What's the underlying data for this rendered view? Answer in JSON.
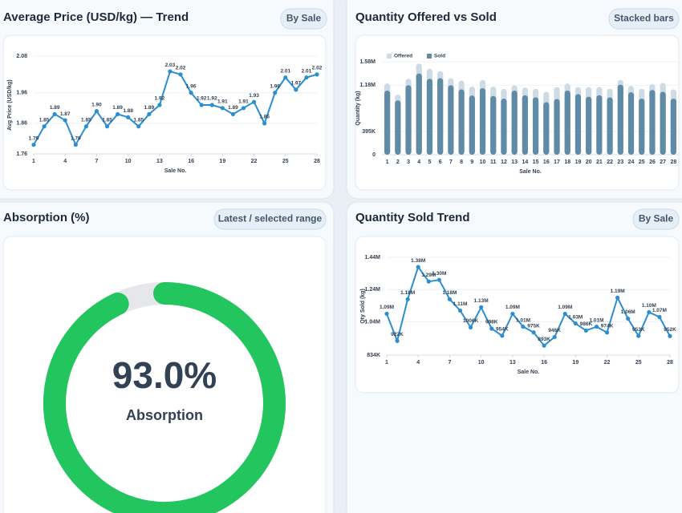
{
  "chart_data": [
    {
      "type": "line",
      "title": "Average Price (USD/kg) — Trend",
      "badge": "By Sale",
      "xlabel": "Sale No.",
      "ylabel": "Avg Price (USD/kg)",
      "x": [
        1,
        2,
        3,
        4,
        5,
        6,
        7,
        8,
        9,
        10,
        11,
        12,
        13,
        14,
        15,
        16,
        17,
        18,
        19,
        20,
        21,
        22,
        23,
        24,
        25,
        26,
        27,
        28
      ],
      "values": [
        1.79,
        1.85,
        1.89,
        1.87,
        1.79,
        1.85,
        1.9,
        1.85,
        1.89,
        1.88,
        1.85,
        1.89,
        1.92,
        2.03,
        2.02,
        1.96,
        1.92,
        1.92,
        1.91,
        1.89,
        1.91,
        1.93,
        1.86,
        1.96,
        2.01,
        1.97,
        2.01,
        2.02
      ],
      "value_labels": [
        "1.79",
        "1.85",
        "1.89",
        "1.87",
        "1.79",
        "1.85",
        "1.90",
        "1.85",
        "1.89",
        "1.88",
        "1.85",
        "1.89",
        "1.92",
        "2.03",
        "2.02",
        "1.96",
        "1.92",
        "1.92",
        "1.91",
        "1.89",
        "1.91",
        "1.93",
        "1.86",
        "1.96",
        "2.01",
        "1.97",
        "2.01",
        "2.02"
      ],
      "color": "#2b8fcf",
      "xlim": [
        1,
        28
      ],
      "xticks": [
        1,
        4,
        7,
        10,
        13,
        16,
        19,
        22,
        25,
        28
      ],
      "ylim": [
        1.76,
        2.08
      ],
      "yticks": [
        1.76,
        1.86,
        1.96,
        2.08
      ],
      "grid": true
    },
    {
      "type": "bar",
      "title": "Quantity Offered vs Sold",
      "badge": "Stacked bars",
      "xlabel": "Sale No.",
      "ylabel": "Quantity (kg)",
      "categories": [
        "1",
        "2",
        "3",
        "4",
        "5",
        "6",
        "7",
        "8",
        "9",
        "10",
        "11",
        "12",
        "13",
        "14",
        "15",
        "16",
        "17",
        "18",
        "19",
        "20",
        "21",
        "22",
        "23",
        "24",
        "25",
        "26",
        "27",
        "28"
      ],
      "series": [
        {
          "name": "Offered",
          "color": "#cfdbe4",
          "values": [
            1210000,
            1020000,
            1290000,
            1550000,
            1460000,
            1420000,
            1300000,
            1260000,
            1160000,
            1270000,
            1160000,
            1120000,
            1180000,
            1140000,
            1120000,
            1070000,
            1150000,
            1210000,
            1150000,
            1150000,
            1150000,
            1120000,
            1270000,
            1170000,
            1120000,
            1200000,
            1220000,
            1110000
          ]
        },
        {
          "name": "Sold",
          "color": "#5f8ba6",
          "values": [
            1090000,
            922000,
            1180000,
            1380000,
            1290000,
            1300000,
            1180000,
            1110000,
            1006000,
            1130000,
            998000,
            954000,
            1090000,
            1010000,
            975000,
            893000,
            946000,
            1090000,
            1030000,
            986000,
            1010000,
            974000,
            1190000,
            1060000,
            953000,
            1100000,
            1070000,
            952000
          ]
        }
      ],
      "legend": "top-left",
      "ylim": [
        0,
        1580000
      ],
      "yticks": [
        0,
        {
          "value": 395000,
          "label": "395K"
        },
        {
          "value": 1180000,
          "label": "1.18M"
        },
        {
          "value": 1580000,
          "label": "1.58M"
        }
      ],
      "grid": true
    },
    {
      "type": "gauge",
      "title": "Absorption (%)",
      "badge": "Latest / selected range",
      "value": 93.0,
      "value_label": "93.0%",
      "label": "Absorption",
      "color": "#22c55e",
      "track_color": "#e5e7eb"
    },
    {
      "type": "line",
      "title": "Quantity Sold Trend",
      "badge": "By Sale",
      "xlabel": "Sale No.",
      "ylabel": "Qty Sold (kg)",
      "x": [
        1,
        2,
        3,
        4,
        5,
        6,
        7,
        8,
        9,
        10,
        11,
        12,
        13,
        14,
        15,
        16,
        17,
        18,
        19,
        20,
        21,
        22,
        23,
        24,
        25,
        26,
        27,
        28
      ],
      "values": [
        1090000,
        922000,
        1180000,
        1380000,
        1290000,
        1300000,
        1180000,
        1110000,
        1006000,
        1130000,
        998000,
        954000,
        1090000,
        1010000,
        975000,
        893000,
        946000,
        1090000,
        1030000,
        986000,
        1010000,
        974000,
        1190000,
        1060000,
        953000,
        1100000,
        1070000,
        952000
      ],
      "value_labels": [
        "1.09M",
        "922K",
        "1.18M",
        "1.38M",
        "1.29M",
        "1.30M",
        "1.18M",
        "1.11M",
        "1006K",
        "1.13M",
        "998K",
        "954K",
        "1.09M",
        "1.01M",
        "975K",
        "893K",
        "946K",
        "1.09M",
        "1.03M",
        "986K",
        "1.01M",
        "974K",
        "1.19M",
        "1.06M",
        "953K",
        "1.10M",
        "1.07M",
        "952K"
      ],
      "color": "#2b8fcf",
      "xlim": [
        1,
        28
      ],
      "xticks": [
        1,
        4,
        7,
        10,
        13,
        16,
        19,
        22,
        25,
        28
      ],
      "ylim": [
        834000,
        1440000
      ],
      "yticks": [
        {
          "value": 834000,
          "label": "834K"
        },
        {
          "value": 1040000,
          "label": "1.04M"
        },
        {
          "value": 1240000,
          "label": "1.24M"
        },
        {
          "value": 1440000,
          "label": "1.44M"
        }
      ],
      "grid": true
    }
  ]
}
